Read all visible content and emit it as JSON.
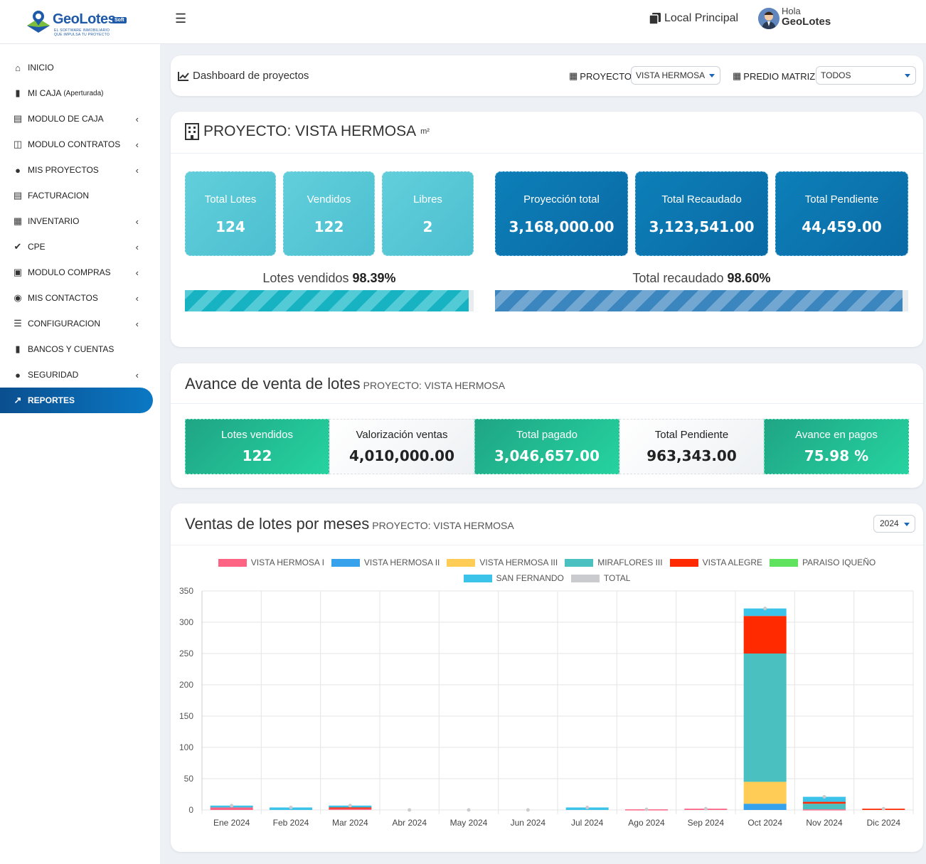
{
  "app": {
    "logo": "GeoLotes",
    "logo_badge": "Soft",
    "logo_tagline_1": "EL SOFTWARE INMOBILIARIO",
    "logo_tagline_2": "QUE IMPULSA TU PROYECTO"
  },
  "topbar": {
    "local": "Local Principal",
    "greeting": "Hola",
    "user": "GeoLotes"
  },
  "sidebar": {
    "items": [
      {
        "label": "INICIO",
        "icon": "home-icon",
        "has_children": false
      },
      {
        "label": "MI CAJA",
        "extra": "(Aperturada)",
        "icon": "wallet-icon",
        "has_children": false
      },
      {
        "label": "MODULO DE CAJA",
        "icon": "cash-register-icon",
        "has_children": true
      },
      {
        "label": "MODULO CONTRATOS",
        "icon": "folder-icon",
        "has_children": true
      },
      {
        "label": "MIS PROYECTOS",
        "icon": "globe-icon",
        "has_children": true
      },
      {
        "label": "FACTURACION",
        "icon": "invoice-icon",
        "has_children": false
      },
      {
        "label": "INVENTARIO",
        "icon": "boxes-icon",
        "has_children": true
      },
      {
        "label": "CPE",
        "icon": "check-double-icon",
        "has_children": true
      },
      {
        "label": "MODULO COMPRAS",
        "icon": "cart-icon",
        "has_children": true
      },
      {
        "label": "MIS CONTACTOS",
        "icon": "user-circle-icon",
        "has_children": true
      },
      {
        "label": "CONFIGURACION",
        "icon": "sliders-icon",
        "has_children": true
      },
      {
        "label": "BANCOS Y CUENTAS",
        "icon": "wallet-icon",
        "has_children": false
      },
      {
        "label": "SEGURIDAD",
        "icon": "user-lock-icon",
        "has_children": true
      },
      {
        "label": "REPORTES",
        "icon": "chart-line-icon",
        "has_children": false,
        "active": true
      }
    ]
  },
  "dashboard_header": {
    "title": "Dashboard de proyectos",
    "proyecto_label": "PROYECTO:",
    "proyecto_value": "VISTA HERMOSA",
    "predio_label": "PREDIO MATRIZ:",
    "predio_value": "TODOS"
  },
  "project_card": {
    "title": "PROYECTO: VISTA HERMOSA",
    "unit": "m²",
    "tiles_left": [
      {
        "label": "Total Lotes",
        "value": "124"
      },
      {
        "label": "Vendidos",
        "value": "122"
      },
      {
        "label": "Libres",
        "value": "2"
      }
    ],
    "tiles_right": [
      {
        "label": "Proyección total",
        "value": "3,168,000.00"
      },
      {
        "label": "Total Recaudado",
        "value": "3,123,541.00"
      },
      {
        "label": "Total Pendiente",
        "value": "44,459.00"
      }
    ],
    "lotes_vendidos_label": "Lotes vendidos",
    "lotes_vendidos_pct": "98.39%",
    "lotes_vendidos_fraction": 0.9839,
    "recaudado_label": "Total recaudado",
    "recaudado_pct": "98.60%",
    "recaudado_fraction": 0.986
  },
  "avance_card": {
    "title": "Avance de venta de lotes",
    "subtitle": "PROYECTO: VISTA HERMOSA",
    "stats": [
      {
        "label": "Lotes vendidos",
        "value": "122",
        "style": "green"
      },
      {
        "label": "Valorización ventas",
        "value": "4,010,000.00",
        "style": "white"
      },
      {
        "label": "Total pagado",
        "value": "3,046,657.00",
        "style": "green"
      },
      {
        "label": "Total Pendiente",
        "value": "963,343.00",
        "style": "white"
      },
      {
        "label": "Avance en pagos",
        "value": "75.98 %",
        "style": "green"
      }
    ]
  },
  "ventas_card": {
    "title": "Ventas de lotes por meses",
    "subtitle": "PROYECTO: VISTA HERMOSA",
    "year": "2024"
  },
  "chart_data": {
    "type": "bar",
    "stacked": true,
    "categories": [
      "Ene 2024",
      "Feb 2024",
      "Mar 2024",
      "Abr 2024",
      "May 2024",
      "Jun 2024",
      "Jul 2024",
      "Ago 2024",
      "Sep 2024",
      "Oct 2024",
      "Nov 2024",
      "Dic 2024"
    ],
    "ylim": [
      0,
      350
    ],
    "yticks": [
      0,
      50,
      100,
      150,
      200,
      250,
      300,
      350
    ],
    "grid": true,
    "legend_position": "top",
    "series": [
      {
        "name": "VISTA HERMOSA I",
        "color": "#ff6384",
        "values": [
          4,
          0,
          2,
          0,
          0,
          0,
          0,
          1,
          2,
          0,
          1,
          0
        ]
      },
      {
        "name": "VISTA HERMOSA II",
        "color": "#36a2eb",
        "values": [
          0,
          0,
          0,
          0,
          0,
          0,
          0,
          0,
          0,
          10,
          0,
          0
        ]
      },
      {
        "name": "VISTA HERMOSA III",
        "color": "#ffcd56",
        "values": [
          0,
          0,
          0,
          0,
          0,
          0,
          0,
          0,
          0,
          35,
          0,
          0
        ]
      },
      {
        "name": "MIRAFLORES III",
        "color": "#4bc0c0",
        "values": [
          0,
          0,
          0,
          0,
          0,
          0,
          0,
          0,
          0,
          205,
          9,
          0
        ]
      },
      {
        "name": "VISTA ALEGRE",
        "color": "#ff2a00",
        "values": [
          0,
          0,
          2,
          0,
          0,
          0,
          0,
          0,
          0,
          60,
          3,
          2
        ]
      },
      {
        "name": "PARAISO IQUEÑO",
        "color": "#5fe35f",
        "values": [
          0,
          0,
          0,
          0,
          0,
          0,
          0,
          0,
          0,
          0,
          0,
          0
        ]
      },
      {
        "name": "SAN FERNANDO",
        "color": "#3cc3ea",
        "values": [
          3,
          4,
          3,
          0,
          0,
          0,
          4,
          0,
          0,
          12,
          8,
          0
        ]
      },
      {
        "name": "TOTAL",
        "color": "#c9cbcf",
        "values": [
          7,
          4,
          7,
          0,
          0,
          0,
          4,
          1,
          2,
          322,
          21,
          2
        ]
      }
    ]
  }
}
